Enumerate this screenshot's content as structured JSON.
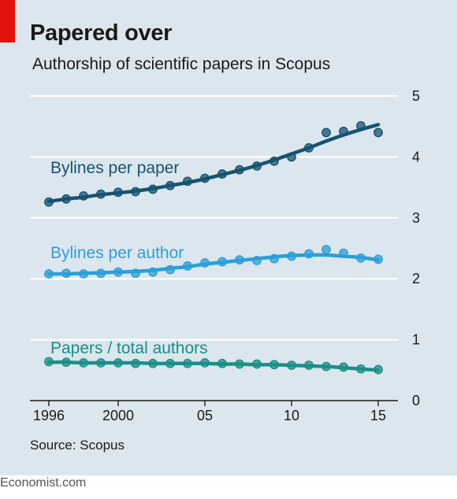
{
  "header": {
    "title": "Papered over",
    "subtitle": "Authorship of scientific papers in Scopus"
  },
  "footer": {
    "source": "Source: Scopus",
    "brand": "Economist.com"
  },
  "colors": {
    "background": "#dbe6ee",
    "accent_red": "#e3120b",
    "bylines_per_paper": "#17536f",
    "bylines_per_author": "#2b9fd7",
    "papers_per_author": "#1b8f86"
  },
  "chart_data": {
    "type": "scatter",
    "title": "Papered over",
    "subtitle": "Authorship of scientific papers in Scopus",
    "xlim": [
      1996,
      2015
    ],
    "ylim": [
      0,
      5
    ],
    "y_axis_side": "right",
    "y_ticks": [
      "0",
      "1",
      "2",
      "3",
      "4",
      "5"
    ],
    "x_ticks": [
      {
        "value": 1996,
        "label": "1996"
      },
      {
        "value": 2000,
        "label": "2000"
      },
      {
        "value": 2005,
        "label": "05"
      },
      {
        "value": 2010,
        "label": "10"
      },
      {
        "value": 2015,
        "label": "15"
      }
    ],
    "grid": true,
    "x": [
      1996,
      1997,
      1998,
      1999,
      2000,
      2001,
      2002,
      2003,
      2004,
      2005,
      2006,
      2007,
      2008,
      2009,
      2010,
      2011,
      2012,
      2013,
      2014,
      2015
    ],
    "series": [
      {
        "name": "Bylines per paper",
        "color": "#17536f",
        "values": [
          3.26,
          3.31,
          3.36,
          3.39,
          3.42,
          3.43,
          3.47,
          3.53,
          3.6,
          3.65,
          3.72,
          3.79,
          3.85,
          3.93,
          4.0,
          4.15,
          4.4,
          4.42,
          4.51,
          4.4
        ],
        "trend": [
          3.27,
          3.31,
          3.34,
          3.38,
          3.41,
          3.44,
          3.48,
          3.53,
          3.58,
          3.64,
          3.71,
          3.78,
          3.86,
          3.95,
          4.05,
          4.15,
          4.26,
          4.36,
          4.45,
          4.53
        ]
      },
      {
        "name": "Bylines per author",
        "color": "#2b9fd7",
        "values": [
          2.08,
          2.09,
          2.08,
          2.09,
          2.11,
          2.09,
          2.11,
          2.15,
          2.21,
          2.26,
          2.28,
          2.31,
          2.3,
          2.33,
          2.37,
          2.41,
          2.48,
          2.42,
          2.34,
          2.32
        ],
        "trend": [
          2.08,
          2.08,
          2.09,
          2.1,
          2.11,
          2.12,
          2.14,
          2.17,
          2.2,
          2.24,
          2.27,
          2.3,
          2.33,
          2.36,
          2.38,
          2.39,
          2.39,
          2.37,
          2.35,
          2.31
        ]
      },
      {
        "name": "Papers / total authors",
        "color": "#1b8f86",
        "values": [
          0.64,
          0.63,
          0.62,
          0.62,
          0.62,
          0.61,
          0.61,
          0.61,
          0.61,
          0.62,
          0.61,
          0.6,
          0.6,
          0.59,
          0.58,
          0.58,
          0.56,
          0.55,
          0.52,
          0.51
        ],
        "trend": [
          0.63,
          0.63,
          0.62,
          0.62,
          0.62,
          0.62,
          0.61,
          0.61,
          0.61,
          0.61,
          0.6,
          0.6,
          0.59,
          0.59,
          0.58,
          0.57,
          0.56,
          0.54,
          0.52,
          0.5
        ]
      }
    ]
  }
}
